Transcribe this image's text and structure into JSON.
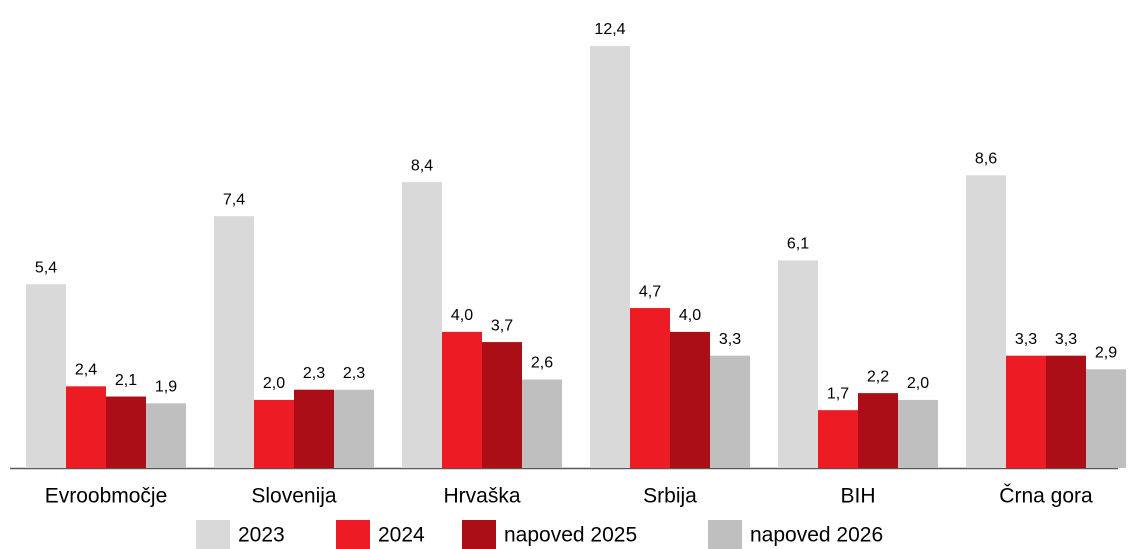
{
  "chart_data": {
    "type": "bar",
    "categories": [
      "Evroobmočje",
      "Slovenija",
      "Hrvaška",
      "Srbija",
      "BIH",
      "Črna gora"
    ],
    "series": [
      {
        "name": "2023",
        "color": "#d9d9d9",
        "values": [
          5.4,
          7.4,
          8.4,
          12.4,
          6.1,
          8.6
        ],
        "value_labels": [
          "5,4",
          "7,4",
          "8,4",
          "12,4",
          "6,1",
          "8,6"
        ]
      },
      {
        "name": "2024",
        "color": "#ed1c24",
        "values": [
          2.4,
          2.0,
          4.0,
          4.7,
          1.7,
          3.3
        ],
        "value_labels": [
          "2,4",
          "2,0",
          "4,0",
          "4,7",
          "1,7",
          "3,3"
        ]
      },
      {
        "name": "napoved 2025",
        "color": "#ab0e16",
        "values": [
          2.1,
          2.3,
          3.7,
          4.0,
          2.2,
          3.3
        ],
        "value_labels": [
          "2,1",
          "2,3",
          "3,7",
          "4,0",
          "2,2",
          "3,3"
        ]
      },
      {
        "name": "napoved 2026",
        "color": "#bfbfbf",
        "values": [
          1.9,
          2.3,
          2.6,
          3.3,
          2.0,
          2.9
        ],
        "value_labels": [
          "1,9",
          "2,3",
          "2,6",
          "3,3",
          "2,0",
          "2,9"
        ]
      }
    ],
    "legend": "bottom"
  }
}
